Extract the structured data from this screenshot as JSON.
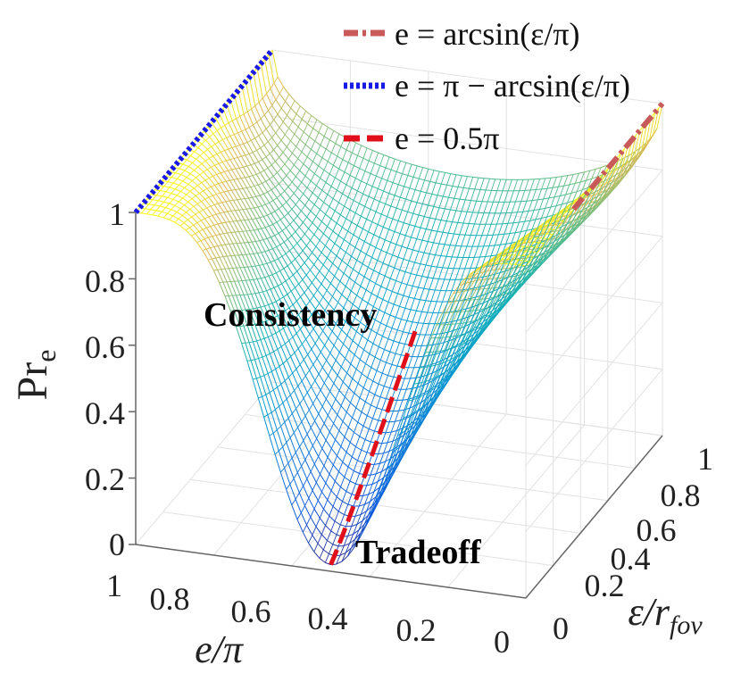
{
  "chart_data": {
    "type": "surface",
    "zlabel": "Pr",
    "zlabel_sub": "e",
    "xlabel": "e/π",
    "ylabel": "ε/r",
    "ylabel_sub": "fov",
    "x_ticks": [
      "1",
      "0.8",
      "0.6",
      "0.4",
      "0.2",
      "0"
    ],
    "y_ticks": [
      "0",
      "0.2",
      "0.4",
      "0.6",
      "0.8",
      "1"
    ],
    "z_ticks": [
      "0",
      "0.2",
      "0.4",
      "0.6",
      "0.8",
      "1"
    ],
    "xlim": [
      0,
      1
    ],
    "ylim": [
      0,
      1
    ],
    "zlim": [
      0,
      1
    ],
    "grid": true,
    "colormap": "parula",
    "legend_position": "top-right",
    "legend": [
      {
        "label": "e = arcsin(ε/π)",
        "color": "#c85a5a",
        "style": "dashdot"
      },
      {
        "label": "e = π − arcsin(ε/π)",
        "color": "#1a1ae6",
        "style": "dotted"
      },
      {
        "label": "e = 0.5π",
        "color": "#e0101a",
        "style": "dashed"
      }
    ],
    "annotations": [
      {
        "text": "Consistency"
      },
      {
        "text": "Tradeoff"
      }
    ],
    "surface_samples": {
      "e_over_pi": [
        1,
        0.9,
        0.75,
        0.6,
        0.5,
        0.4,
        0.25,
        0.1,
        0
      ],
      "Pr_e_at_eps_0": [
        1,
        0.3,
        0.05,
        0.01,
        0.0,
        0.01,
        0.05,
        0.3,
        1
      ],
      "Pr_e_at_eps_1": [
        1,
        0.95,
        0.85,
        0.75,
        0.7,
        0.75,
        0.85,
        0.95,
        1
      ]
    }
  }
}
